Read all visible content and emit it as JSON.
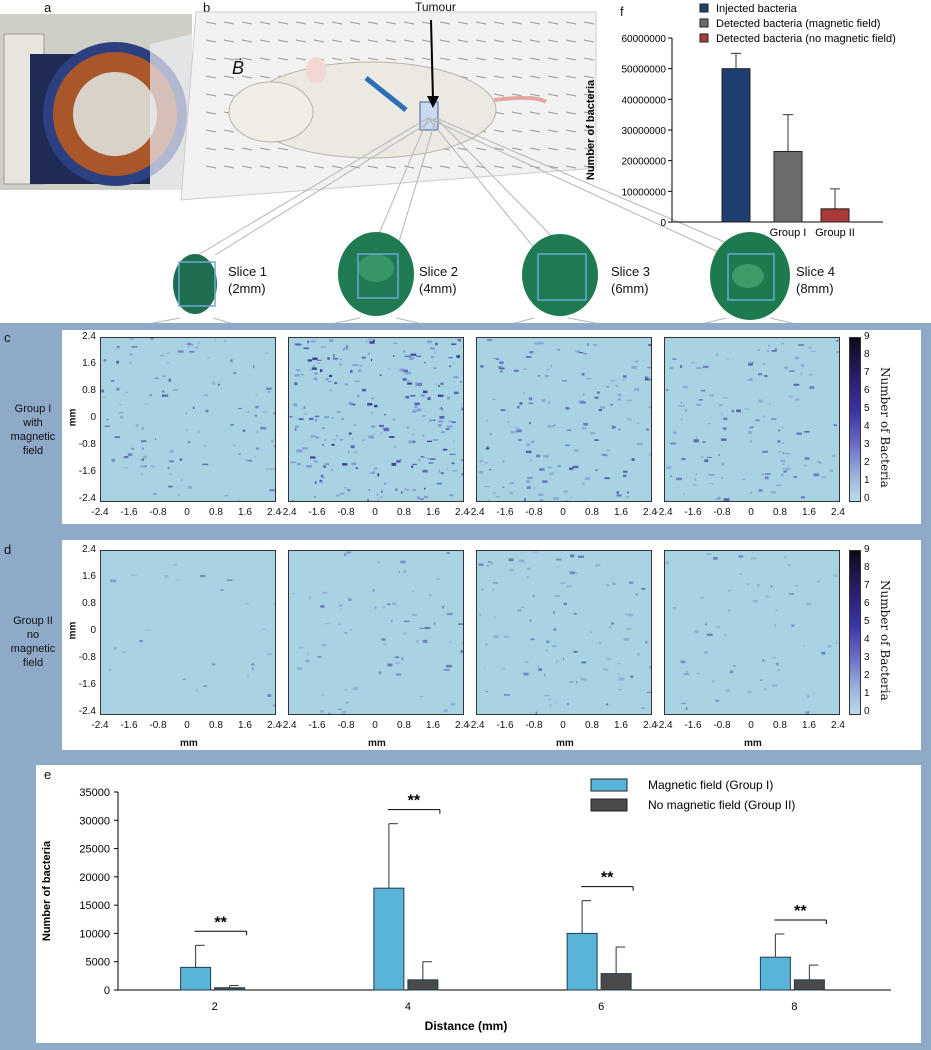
{
  "panel_labels": {
    "a": "a",
    "b": "b",
    "c": "c",
    "d": "d",
    "e": "e",
    "f": "f"
  },
  "panel_b": {
    "field_label": "B",
    "tumour_label": "Tumour"
  },
  "slices": [
    {
      "name": "Slice 1",
      "depth": "(2mm)"
    },
    {
      "name": "Slice 2",
      "depth": "(4mm)"
    },
    {
      "name": "Slice 3",
      "depth": "(6mm)"
    },
    {
      "name": "Slice 4",
      "depth": "(8mm)"
    }
  ],
  "heatmaps": {
    "group_c": {
      "line1": "Group I",
      "line2": "with",
      "line3": "magnetic",
      "line4": "field"
    },
    "group_d": {
      "line1": "Group II",
      "line2": "no",
      "line3": "magnetic",
      "line4": "field"
    },
    "axis_unit": "mm",
    "ticks": [
      "-2.4",
      "-1.6",
      "-0.8",
      "0",
      "0.8",
      "1.6",
      "2.4"
    ],
    "colorbar_title": "Number of Bacteria",
    "colorbar_ticks": [
      "9",
      "8",
      "7",
      "6",
      "5",
      "4",
      "3",
      "2",
      "1",
      "0"
    ],
    "intensity_c": [
      0.35,
      0.75,
      0.45,
      0.4
    ],
    "intensity_d": [
      0.08,
      0.22,
      0.28,
      0.18
    ]
  },
  "chart_data": [
    {
      "id": "f",
      "type": "bar",
      "title": "",
      "ylabel": "Number of bacteria",
      "xlabel": "",
      "ylim": [
        0,
        60000000
      ],
      "yticks": [
        "0",
        "10000000",
        "20000000",
        "30000000",
        "40000000",
        "50000000",
        "60000000"
      ],
      "legend": [
        "Injected bacteria",
        "Detected bacteria (magnetic field)",
        "Detected bacteria (no magnetic field)"
      ],
      "categories": [
        "",
        "Group I",
        "Group II"
      ],
      "values": [
        50000000,
        23000000,
        4300000
      ],
      "errors": [
        5000000,
        12000000,
        6500000
      ],
      "colors": [
        "#1f3f6e",
        "#6d6d6d",
        "#a83a3a"
      ]
    },
    {
      "id": "e",
      "type": "bar",
      "xlabel": "Distance (mm)",
      "ylabel": "Number of bacteria",
      "ylim": [
        0,
        35000
      ],
      "yticks": [
        "0",
        "5000",
        "10000",
        "15000",
        "20000",
        "25000",
        "30000",
        "35000"
      ],
      "categories": [
        "2",
        "4",
        "6",
        "8"
      ],
      "series": [
        {
          "name": "Magnetic field (Group I)",
          "values": [
            4000,
            18000,
            10000,
            5800
          ],
          "errors": [
            3900,
            11400,
            5800,
            4100
          ],
          "color": "#5ab4d8"
        },
        {
          "name": "No magnetic field (Group II)",
          "values": [
            400,
            1800,
            2900,
            1800
          ],
          "errors": [
            400,
            3200,
            4700,
            2600
          ],
          "color": "#4a4a4a"
        }
      ],
      "significance": [
        "**",
        "**",
        "**",
        "**"
      ]
    }
  ]
}
